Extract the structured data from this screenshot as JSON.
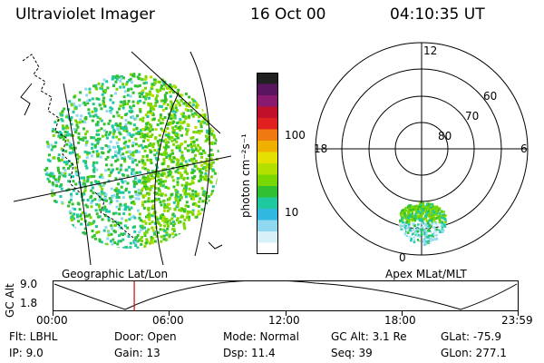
{
  "header": {
    "instrument": "Ultraviolet Imager",
    "date": "16 Oct 00",
    "time": "04:10:35 UT"
  },
  "colorbar": {
    "unit_label": "photon cm⁻²s⁻¹",
    "ticks": [
      "100",
      "10"
    ],
    "colors": [
      "#202020",
      "#5a1560",
      "#8a1a70",
      "#c0102a",
      "#e02020",
      "#f07a10",
      "#f0b000",
      "#e6e000",
      "#b4e000",
      "#7ad600",
      "#30c030",
      "#20c8a0",
      "#30b8e0",
      "#90d8f0",
      "#d8f0f8",
      "#ffffff"
    ]
  },
  "geo_panel": {
    "label": "Geographic Lat/Lon"
  },
  "polar_panel": {
    "label": "Apex MLat/MLT",
    "mlt_labels": {
      "top": "12",
      "left": "18",
      "right": "6",
      "bottom": "0"
    },
    "lat_labels": [
      "60",
      "70",
      "80"
    ]
  },
  "altitude_plot": {
    "ylabel": "GC Alt",
    "yticks": [
      "9.0",
      "1.8"
    ],
    "xticks": [
      "00:00",
      "06:00",
      "12:00",
      "18:00",
      "23:59"
    ],
    "current_time_fraction": 0.174
  },
  "status": {
    "flt": "Flt: LBHL",
    "ip": "IP:  9.0",
    "door": "Door: Open",
    "gain": "Gain: 13",
    "mode": "Mode: Normal",
    "dsp": "Dsp:     11.4",
    "gcalt": "GC Alt: 3.1 Re",
    "seq": "Seq: 39",
    "glat": "GLat:  -75.9",
    "glon": "GLon: 277.1"
  }
}
